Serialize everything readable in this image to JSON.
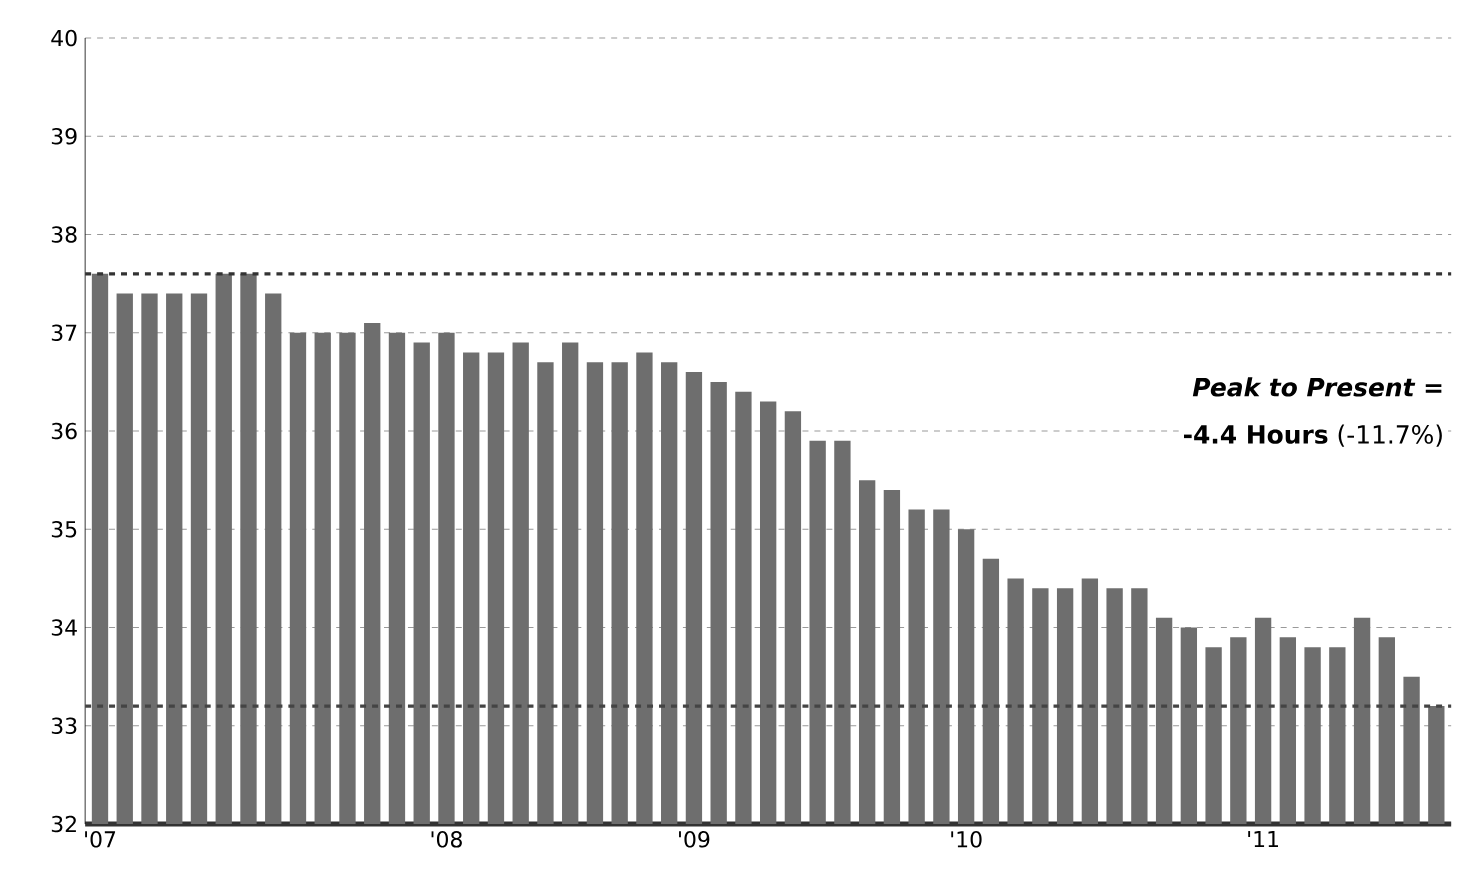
{
  "chart_data": {
    "type": "bar",
    "categories": [
      "'07",
      null,
      null,
      null,
      null,
      null,
      null,
      null,
      null,
      null,
      null,
      null,
      null,
      null,
      "'08",
      null,
      null,
      null,
      null,
      null,
      null,
      null,
      null,
      null,
      "'09",
      null,
      null,
      null,
      null,
      null,
      null,
      null,
      null,
      null,
      null,
      "'10",
      null,
      null,
      null,
      null,
      null,
      null,
      null,
      null,
      null,
      null,
      null,
      "'11",
      null,
      null,
      null,
      null,
      null,
      null,
      null
    ],
    "values": [
      37.6,
      37.4,
      37.4,
      37.4,
      37.4,
      37.6,
      37.6,
      37.4,
      37.0,
      37.0,
      37.0,
      37.1,
      37.0,
      36.9,
      37.0,
      36.8,
      36.8,
      36.9,
      36.7,
      36.9,
      36.7,
      36.7,
      36.8,
      36.7,
      36.6,
      36.5,
      36.4,
      36.3,
      36.2,
      35.9,
      35.9,
      35.5,
      35.4,
      35.2,
      35.2,
      35.0,
      34.7,
      34.5,
      34.4,
      34.4,
      34.5,
      34.4,
      34.4,
      34.1,
      34.0,
      33.8,
      33.9,
      34.1,
      33.9,
      33.8,
      33.8,
      34.1,
      33.9,
      33.5,
      33.2
    ],
    "color": "#6e6e6e",
    "ylim": [
      32,
      40
    ],
    "yticks": [
      32,
      33,
      34,
      35,
      36,
      37,
      38,
      39,
      40
    ],
    "grid": "y",
    "ref_lines": [
      {
        "axis": "y",
        "value": 37.6,
        "color": "#333333",
        "line_style": "dashed"
      },
      {
        "axis": "y",
        "value": 33.2,
        "color": "#444444",
        "line_style": "dashed"
      }
    ],
    "annotations": [
      "Peak to Present =",
      "**-4.4 Hours** (-11.7%)"
    ]
  }
}
